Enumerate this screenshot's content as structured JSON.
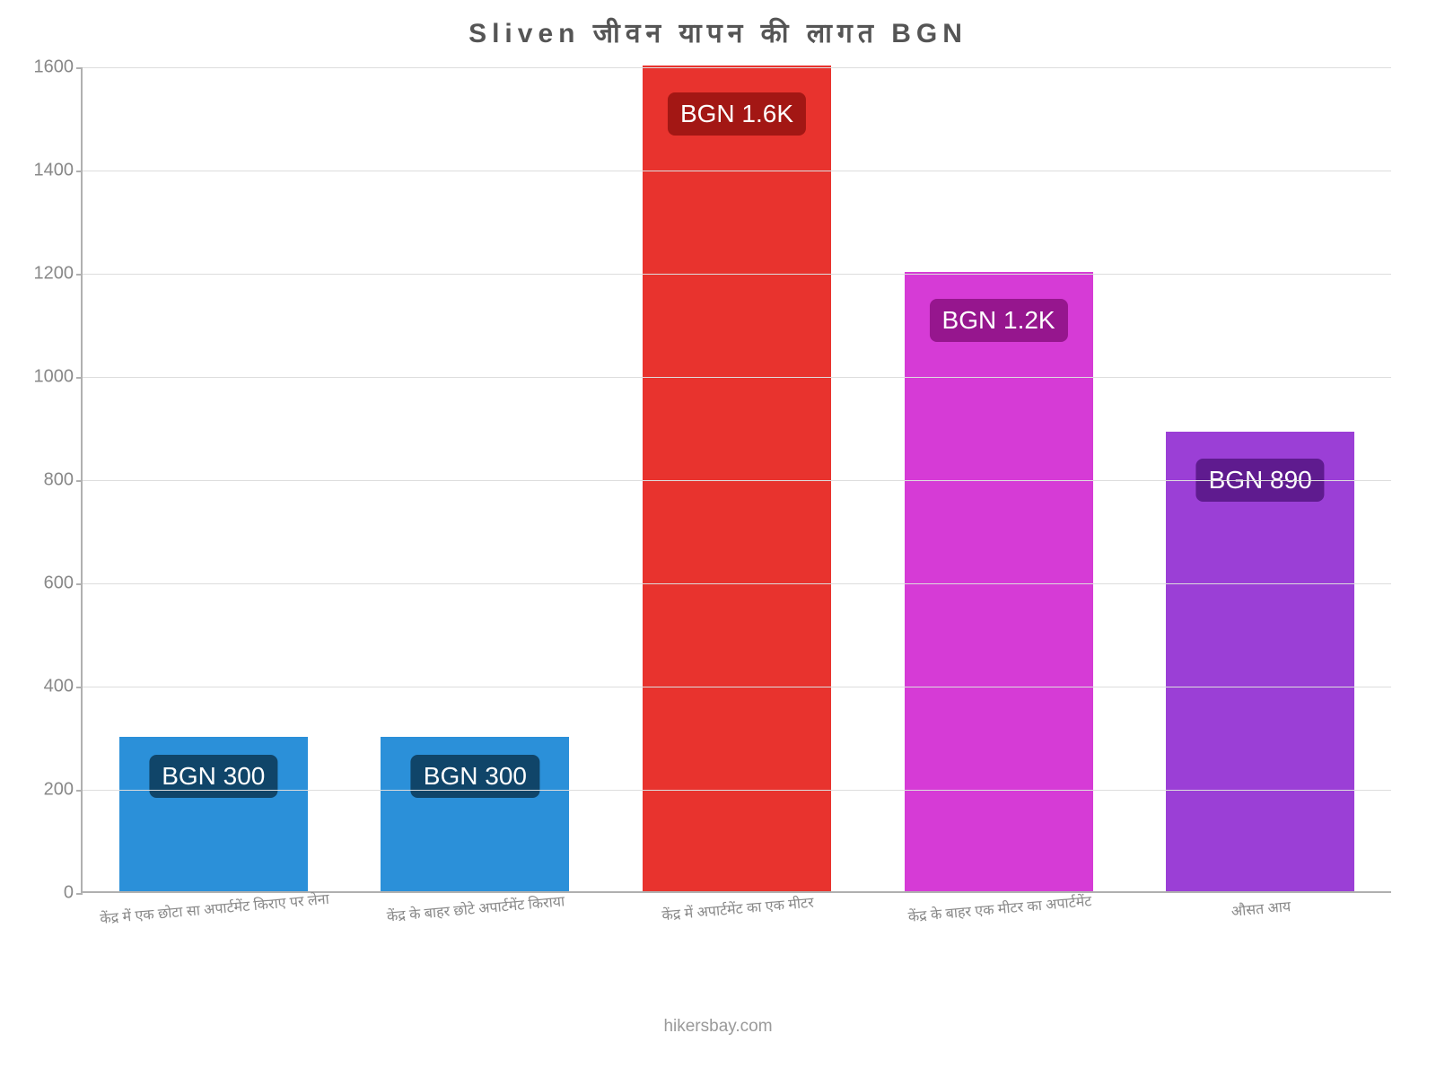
{
  "chart": {
    "type": "bar",
    "title": "Sliven जीवन  यापन  की  लागत  BGN",
    "title_fontsize": 30,
    "title_color": "#555555",
    "background_color": "#ffffff",
    "axis_color": "#b0b0b0",
    "grid_color": "#dddddd",
    "tick_label_color": "#888888",
    "tick_label_fontsize": 20,
    "xlabel_fontsize": 16,
    "xlabel_color": "#888888",
    "xlabel_rotation_deg": -5,
    "ylim": [
      0,
      1600
    ],
    "ytick_step": 200,
    "yticks": [
      0,
      200,
      400,
      600,
      800,
      1000,
      1200,
      1400,
      1600
    ],
    "bar_width_ratio": 0.72,
    "categories": [
      "केंद्र में एक छोटा सा अपार्टमेंट किराए पर लेना",
      "केंद्र के बाहर छोटे अपार्टमेंट किराया",
      "केंद्र में अपार्टमेंट का एक मीटर",
      "केंद्र के बाहर एक मीटर का अपार्टमेंट",
      "औसत आय"
    ],
    "values": [
      300,
      300,
      1600,
      1200,
      890
    ],
    "value_labels": [
      "BGN 300",
      "BGN 300",
      "BGN 1.6K",
      "BGN 1.2K",
      "BGN 890"
    ],
    "bar_colors": [
      "#2b90d9",
      "#2b90d9",
      "#e8332e",
      "#d63bd6",
      "#9b3fd6"
    ],
    "label_box_colors": [
      "#104569",
      "#104569",
      "#a31714",
      "#96168e",
      "#5f1b8f"
    ],
    "label_fontsize": 28,
    "label_color": "#ffffff",
    "footer": "hikersbay.com",
    "footer_fontsize": 19,
    "footer_color": "#9a9a9a"
  }
}
